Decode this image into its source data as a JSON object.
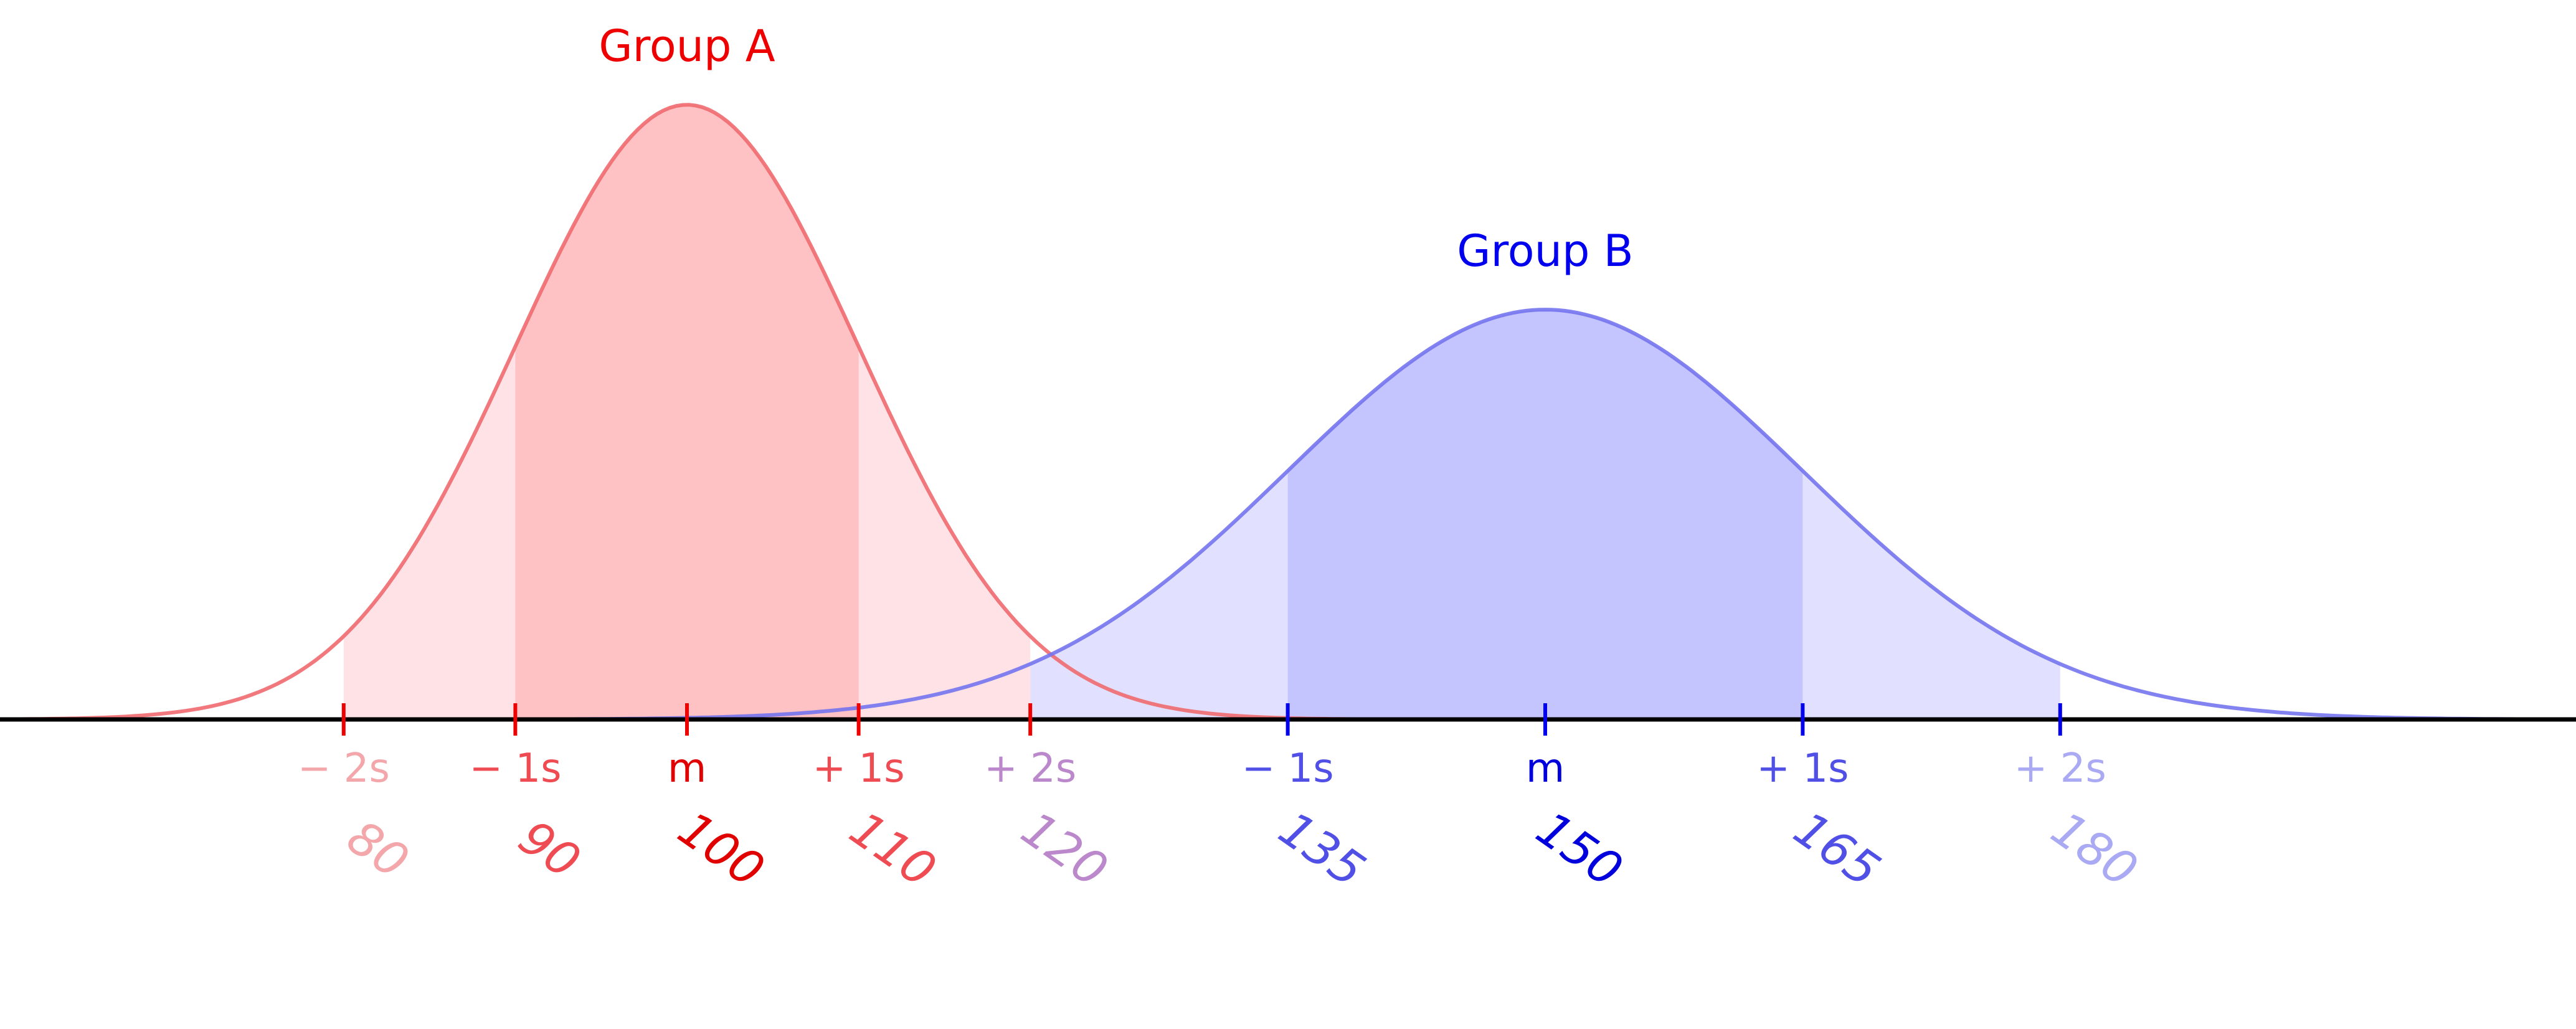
{
  "chart_data": {
    "type": "area",
    "xlim": [
      0,
      225
    ],
    "groups": [
      {
        "name": "Group A",
        "mean": 100,
        "sd": 10,
        "peak_density": 0.0399,
        "color": "#ee0000",
        "fill_color": "#ffc0c2",
        "fill_light_color": "#ffdde0",
        "curve_color": "#f06a6f",
        "ticks": [
          {
            "x": 80,
            "label": "− 2s",
            "value_label": "80",
            "color": "#f4a7ab"
          },
          {
            "x": 90,
            "label": "− 1s",
            "value_label": "90",
            "color": "#ee4b52"
          },
          {
            "x": 100,
            "label": "m",
            "value_label": "100",
            "color": "#e00000"
          },
          {
            "x": 110,
            "label": "+ 1s",
            "value_label": "110",
            "color": "#ee4b52"
          },
          {
            "x": 120,
            "label": "+ 2s",
            "value_label": "120",
            "color": "#bb88cc"
          }
        ]
      },
      {
        "name": "Group B",
        "mean": 150,
        "sd": 15,
        "peak_density": 0.0266,
        "color": "#0000ee",
        "fill_color": "#c2c2ff",
        "fill_light_color": "#dcdcff",
        "curve_color": "#7474ee",
        "ticks": [
          {
            "x": 135,
            "label": "− 1s",
            "value_label": "135",
            "color": "#5050e6"
          },
          {
            "x": 150,
            "label": "m",
            "value_label": "150",
            "color": "#0000dd"
          },
          {
            "x": 165,
            "label": "+ 1s",
            "value_label": "165",
            "color": "#5050e6"
          },
          {
            "x": 180,
            "label": "+ 2s",
            "value_label": "180",
            "color": "#aaaaf4"
          }
        ]
      }
    ]
  }
}
